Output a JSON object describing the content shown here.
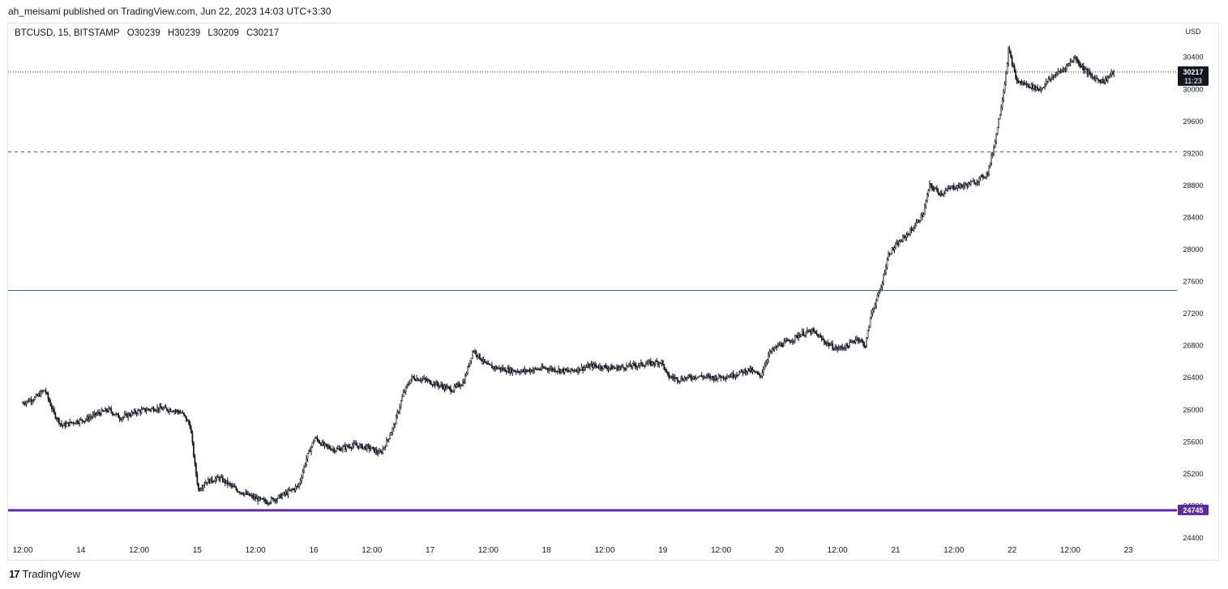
{
  "header": {
    "publish_line": "ah_meisami published on TradingView.com, Jun 22, 2023 14:03 UTC+3:30"
  },
  "legend": {
    "symbol": "BTCUSD, 15, BITSTAMP",
    "open": "O30239",
    "high": "H30239",
    "low": "L30209",
    "close": "C30217"
  },
  "footer": {
    "brand": "TradingView",
    "logo_text": "17"
  },
  "colors": {
    "candle": "#131722",
    "purple_line": "#5b2c9e",
    "teal_line": "#2a6f85",
    "green_dashed": "#2e7d32",
    "last_price_bg": "#131722"
  },
  "chart_data": {
    "type": "candlestick",
    "symbol": "BTCUSD",
    "interval": "15",
    "exchange": "BITSTAMP",
    "currency_label": "USD",
    "ylim": [
      24400,
      30650
    ],
    "y_ticks": [
      24400,
      24800,
      25200,
      25600,
      26000,
      26400,
      26800,
      27200,
      27600,
      28000,
      28400,
      28800,
      29200,
      29600,
      30000,
      30400
    ],
    "y_tick_labels": [
      "24400",
      "24800",
      "25200",
      "25600",
      "26000",
      "26400",
      "26800",
      "27200",
      "27600",
      "28000",
      "28400",
      "28800",
      "29200",
      "29600",
      "30000",
      "30400"
    ],
    "x_range_days": [
      13.5,
      23.5
    ],
    "x_ticks": [
      {
        "t": 13.5,
        "label": "12:00"
      },
      {
        "t": 14.0,
        "label": "14"
      },
      {
        "t": 14.5,
        "label": "12:00"
      },
      {
        "t": 15.0,
        "label": "15"
      },
      {
        "t": 15.5,
        "label": "12:00"
      },
      {
        "t": 16.0,
        "label": "16"
      },
      {
        "t": 16.5,
        "label": "12:00"
      },
      {
        "t": 17.0,
        "label": "17"
      },
      {
        "t": 17.5,
        "label": "12:00"
      },
      {
        "t": 18.0,
        "label": "18"
      },
      {
        "t": 18.5,
        "label": "12:00"
      },
      {
        "t": 19.0,
        "label": "19"
      },
      {
        "t": 19.5,
        "label": "12:00"
      },
      {
        "t": 20.0,
        "label": "20"
      },
      {
        "t": 20.5,
        "label": "12:00"
      },
      {
        "t": 21.0,
        "label": "21"
      },
      {
        "t": 21.5,
        "label": "12:00"
      },
      {
        "t": 22.0,
        "label": "22"
      },
      {
        "t": 22.5,
        "label": "12:00"
      },
      {
        "t": 23.0,
        "label": "23"
      }
    ],
    "price_path": [
      [
        13.5,
        26080
      ],
      [
        13.62,
        26150
      ],
      [
        13.7,
        26250
      ],
      [
        13.78,
        25950
      ],
      [
        13.85,
        25800
      ],
      [
        13.95,
        25850
      ],
      [
        14.05,
        25880
      ],
      [
        14.15,
        25950
      ],
      [
        14.25,
        26000
      ],
      [
        14.35,
        25900
      ],
      [
        14.5,
        25980
      ],
      [
        14.65,
        26020
      ],
      [
        14.8,
        26000
      ],
      [
        14.88,
        25960
      ],
      [
        14.95,
        25800
      ],
      [
        14.99,
        25300
      ],
      [
        15.02,
        25000
      ],
      [
        15.08,
        25100
      ],
      [
        15.2,
        25150
      ],
      [
        15.35,
        25000
      ],
      [
        15.5,
        24900
      ],
      [
        15.6,
        24850
      ],
      [
        15.7,
        24900
      ],
      [
        15.8,
        24980
      ],
      [
        15.88,
        25050
      ],
      [
        15.95,
        25400
      ],
      [
        16.02,
        25650
      ],
      [
        16.1,
        25550
      ],
      [
        16.2,
        25500
      ],
      [
        16.35,
        25560
      ],
      [
        16.5,
        25520
      ],
      [
        16.58,
        25450
      ],
      [
        16.62,
        25550
      ],
      [
        16.7,
        25800
      ],
      [
        16.78,
        26200
      ],
      [
        16.85,
        26400
      ],
      [
        16.95,
        26380
      ],
      [
        17.1,
        26300
      ],
      [
        17.2,
        26250
      ],
      [
        17.3,
        26350
      ],
      [
        17.38,
        26750
      ],
      [
        17.5,
        26550
      ],
      [
        17.65,
        26500
      ],
      [
        17.8,
        26480
      ],
      [
        18.0,
        26520
      ],
      [
        18.2,
        26480
      ],
      [
        18.4,
        26550
      ],
      [
        18.6,
        26520
      ],
      [
        18.8,
        26560
      ],
      [
        19.0,
        26600
      ],
      [
        19.05,
        26420
      ],
      [
        19.15,
        26380
      ],
      [
        19.3,
        26420
      ],
      [
        19.45,
        26400
      ],
      [
        19.6,
        26430
      ],
      [
        19.75,
        26500
      ],
      [
        19.85,
        26420
      ],
      [
        19.92,
        26700
      ],
      [
        20.0,
        26800
      ],
      [
        20.1,
        26860
      ],
      [
        20.2,
        26950
      ],
      [
        20.3,
        26980
      ],
      [
        20.4,
        26850
      ],
      [
        20.5,
        26760
      ],
      [
        20.6,
        26800
      ],
      [
        20.68,
        26900
      ],
      [
        20.75,
        26800
      ],
      [
        20.8,
        27200
      ],
      [
        20.88,
        27500
      ],
      [
        20.95,
        27950
      ],
      [
        21.05,
        28100
      ],
      [
        21.15,
        28250
      ],
      [
        21.25,
        28450
      ],
      [
        21.3,
        28800
      ],
      [
        21.4,
        28700
      ],
      [
        21.5,
        28780
      ],
      [
        21.6,
        28800
      ],
      [
        21.7,
        28850
      ],
      [
        21.8,
        28950
      ],
      [
        21.85,
        29250
      ],
      [
        21.9,
        29650
      ],
      [
        21.95,
        30100
      ],
      [
        21.98,
        30500
      ],
      [
        22.05,
        30100
      ],
      [
        22.15,
        30050
      ],
      [
        22.25,
        30000
      ],
      [
        22.35,
        30150
      ],
      [
        22.45,
        30250
      ],
      [
        22.55,
        30400
      ],
      [
        22.6,
        30300
      ],
      [
        22.7,
        30150
      ],
      [
        22.8,
        30100
      ],
      [
        22.88,
        30217
      ]
    ],
    "horizontal_lines": [
      {
        "price": 30217,
        "style": "dotted",
        "color": "#131722"
      },
      {
        "price": 29220,
        "style": "dashed",
        "color": "#2e7d32"
      },
      {
        "price": 27490,
        "style": "solid",
        "color": "#2a6f85"
      },
      {
        "price": 24745,
        "style": "solid-thick",
        "color": "#5b2c9e"
      }
    ],
    "price_labels": [
      {
        "price": 30217,
        "text": "30217",
        "sub": "11:23",
        "bg": "#131722"
      },
      {
        "price": 24745,
        "text": "24745",
        "sub": "",
        "bg": "#5b2c9e"
      }
    ]
  }
}
